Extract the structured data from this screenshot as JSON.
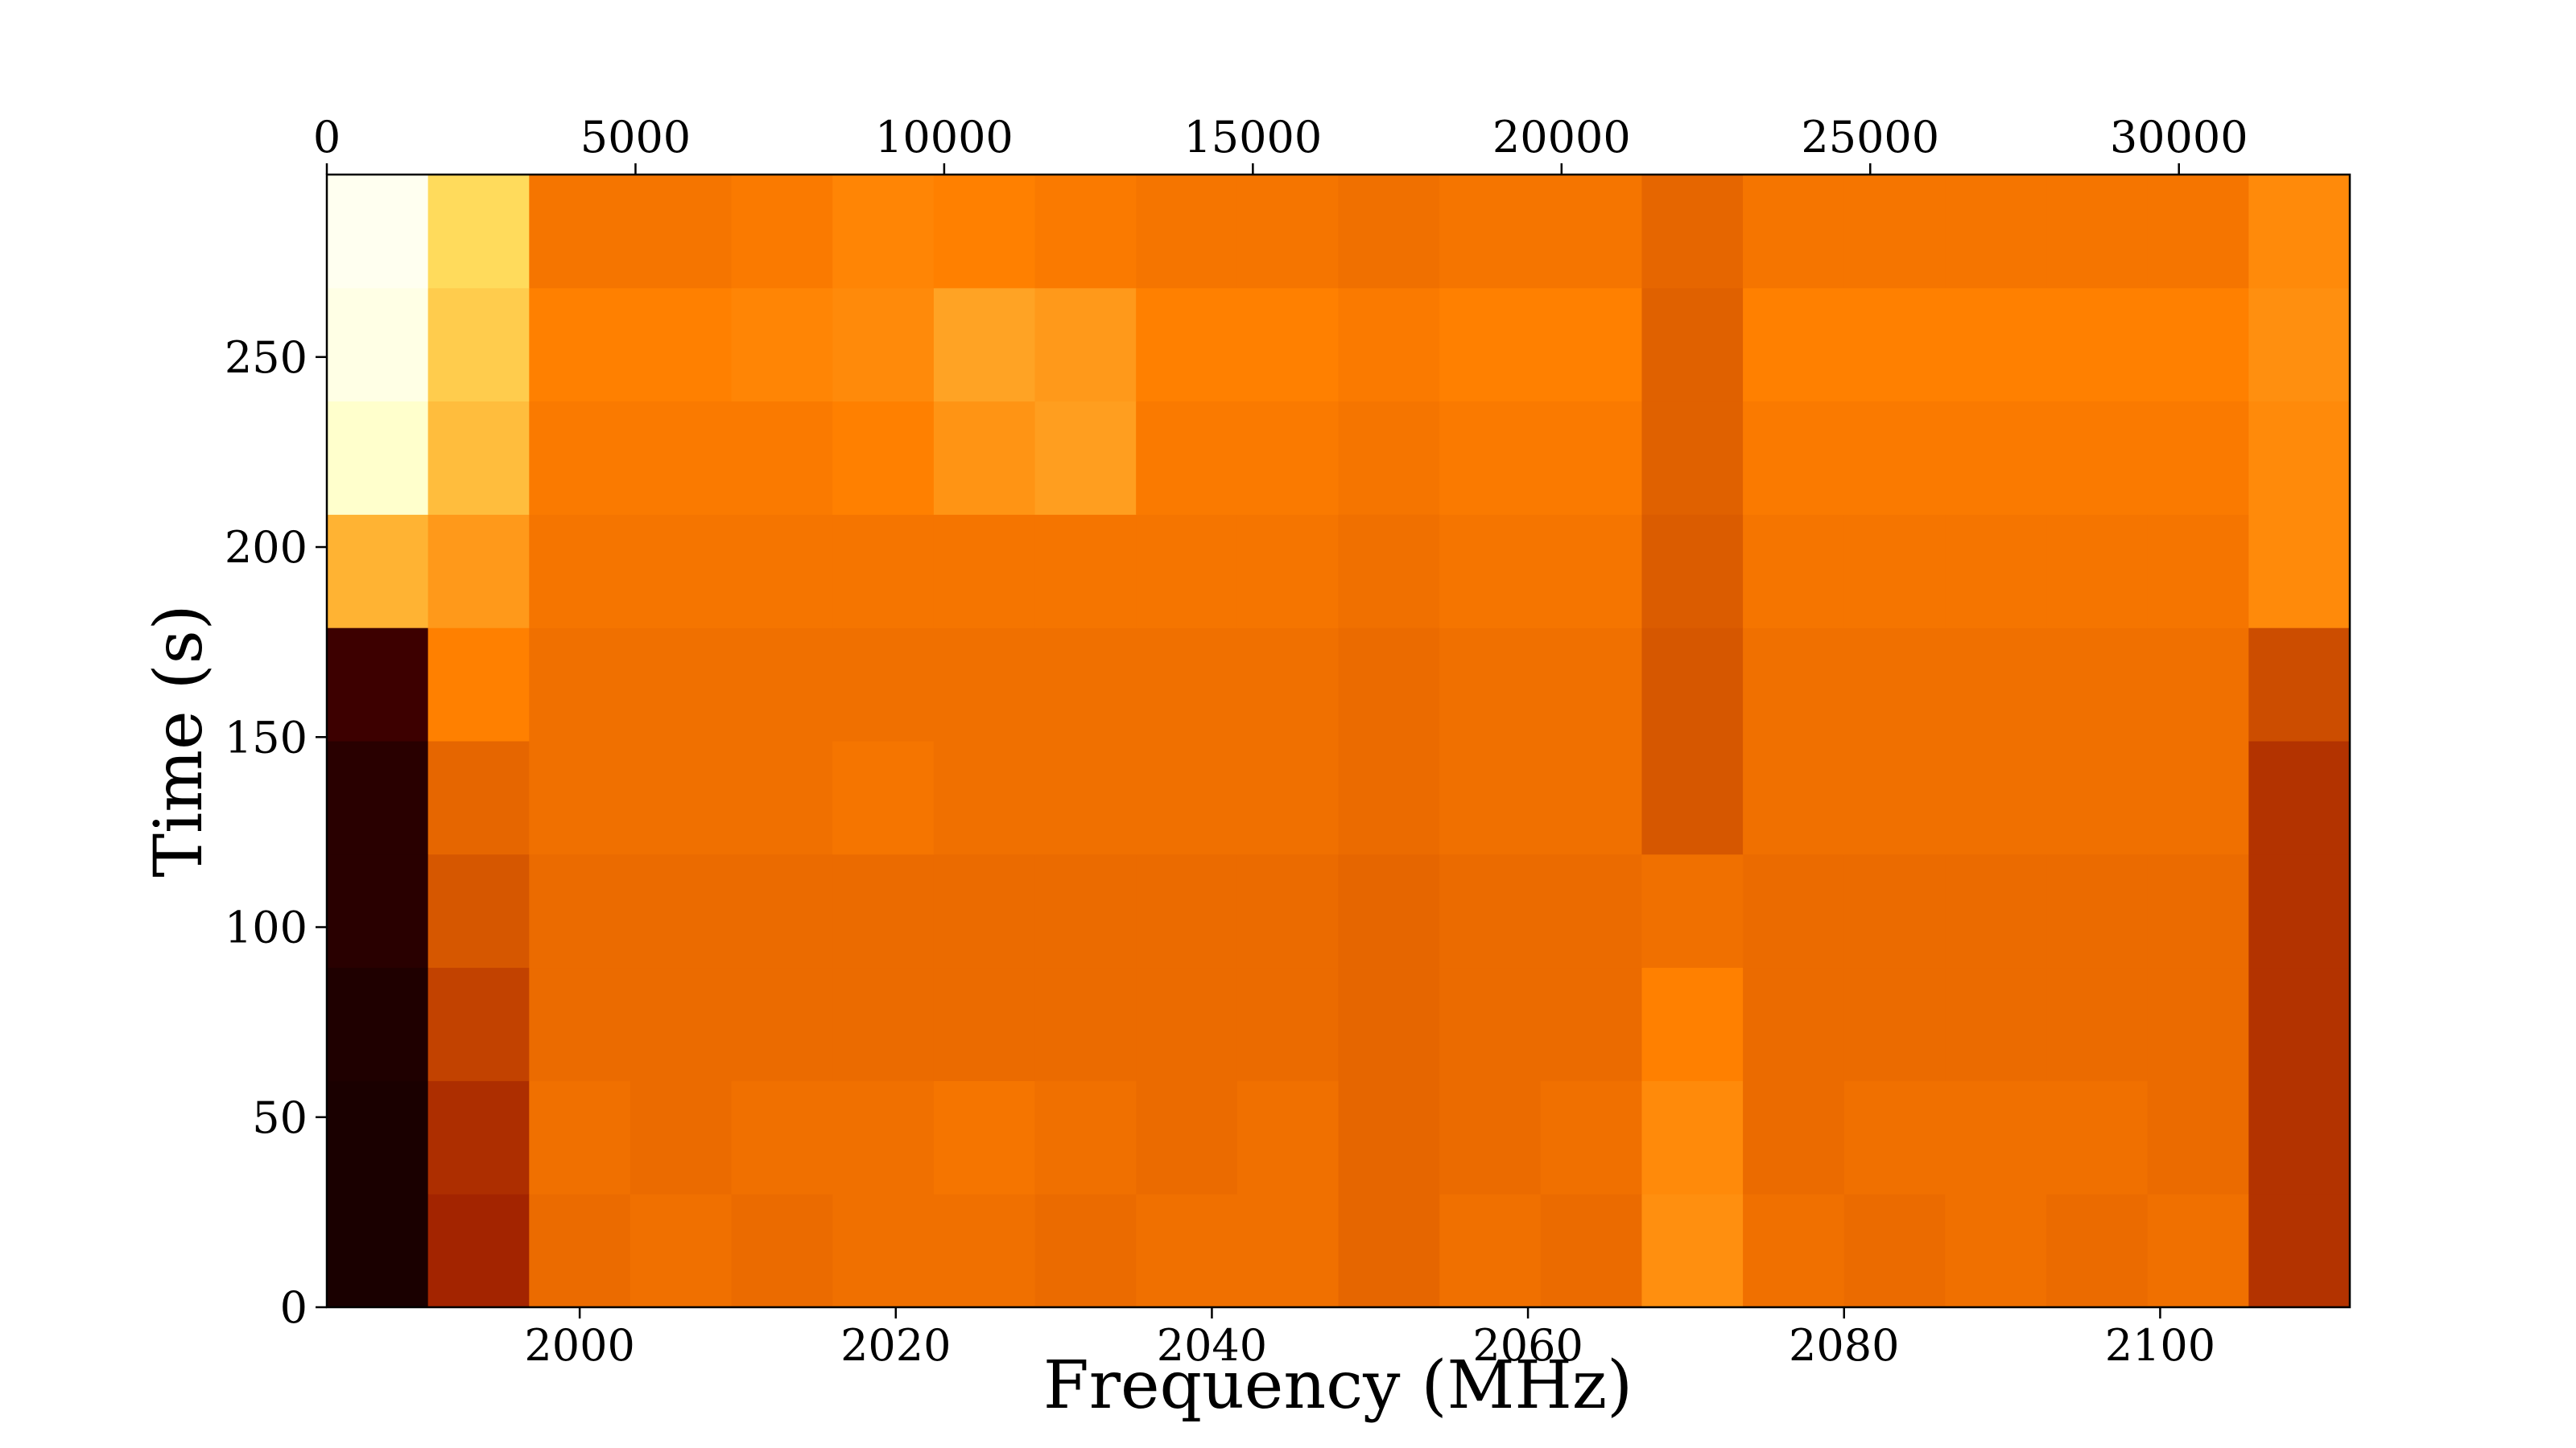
{
  "chart_data": {
    "type": "heatmap",
    "xlabel": "Frequency (MHz)",
    "ylabel": "Time (s)",
    "xlim": [
      1984,
      2112
    ],
    "xticks": [
      2000,
      2020,
      2040,
      2060,
      2080,
      2100
    ],
    "x2lim": [
      0,
      32768
    ],
    "x2ticks": [
      0,
      5000,
      10000,
      15000,
      20000,
      25000,
      30000
    ],
    "ylim": [
      0,
      298
    ],
    "yticks": [
      0,
      50,
      100,
      150,
      200,
      250
    ],
    "colormap": "afmhot",
    "z": [
      [
        0.05,
        0.32,
        0.46,
        0.47,
        0.46,
        0.47,
        0.47,
        0.46,
        0.47,
        0.47,
        0.45,
        0.47,
        0.46,
        0.53,
        0.47,
        0.46,
        0.47,
        0.46,
        0.47,
        0.35
      ],
      [
        0.05,
        0.34,
        0.47,
        0.46,
        0.47,
        0.47,
        0.48,
        0.47,
        0.46,
        0.47,
        0.45,
        0.46,
        0.47,
        0.52,
        0.46,
        0.47,
        0.47,
        0.47,
        0.46,
        0.35
      ],
      [
        0.06,
        0.38,
        0.46,
        0.46,
        0.46,
        0.46,
        0.46,
        0.46,
        0.46,
        0.46,
        0.45,
        0.46,
        0.46,
        0.5,
        0.46,
        0.46,
        0.46,
        0.46,
        0.46,
        0.35
      ],
      [
        0.08,
        0.42,
        0.46,
        0.46,
        0.46,
        0.46,
        0.46,
        0.46,
        0.46,
        0.46,
        0.45,
        0.46,
        0.46,
        0.47,
        0.46,
        0.46,
        0.46,
        0.46,
        0.46,
        0.35
      ],
      [
        0.08,
        0.45,
        0.47,
        0.47,
        0.47,
        0.48,
        0.47,
        0.47,
        0.47,
        0.47,
        0.46,
        0.47,
        0.47,
        0.42,
        0.47,
        0.47,
        0.47,
        0.47,
        0.47,
        0.35
      ],
      [
        0.12,
        0.5,
        0.47,
        0.47,
        0.47,
        0.47,
        0.47,
        0.47,
        0.47,
        0.47,
        0.46,
        0.47,
        0.47,
        0.42,
        0.47,
        0.47,
        0.47,
        0.47,
        0.47,
        0.4
      ],
      [
        0.6,
        0.55,
        0.48,
        0.48,
        0.48,
        0.48,
        0.48,
        0.48,
        0.48,
        0.48,
        0.47,
        0.48,
        0.48,
        0.43,
        0.48,
        0.48,
        0.48,
        0.48,
        0.48,
        0.52
      ],
      [
        0.9,
        0.62,
        0.49,
        0.49,
        0.49,
        0.5,
        0.54,
        0.56,
        0.49,
        0.49,
        0.48,
        0.49,
        0.49,
        0.44,
        0.49,
        0.49,
        0.49,
        0.49,
        0.49,
        0.52
      ],
      [
        0.95,
        0.65,
        0.5,
        0.5,
        0.51,
        0.52,
        0.57,
        0.55,
        0.5,
        0.5,
        0.49,
        0.5,
        0.5,
        0.44,
        0.5,
        0.5,
        0.5,
        0.5,
        0.5,
        0.53
      ],
      [
        0.97,
        0.68,
        0.48,
        0.48,
        0.49,
        0.51,
        0.5,
        0.49,
        0.48,
        0.48,
        0.47,
        0.48,
        0.48,
        0.45,
        0.48,
        0.48,
        0.48,
        0.48,
        0.48,
        0.52
      ]
    ]
  }
}
